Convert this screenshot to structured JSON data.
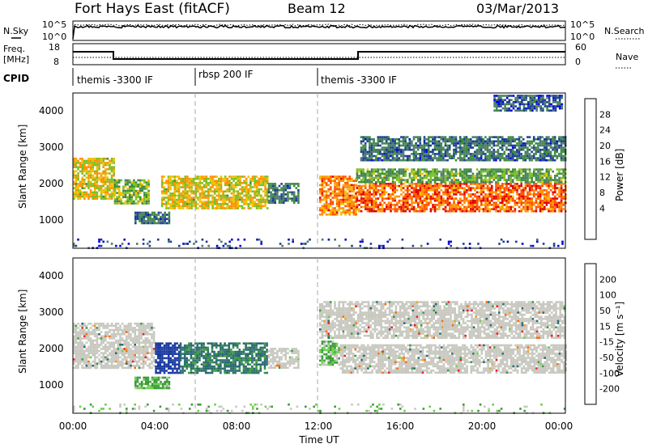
{
  "header": {
    "station": "Fort Hays East (fitACF)",
    "beam": "Beam 12",
    "date": "03/Mar/2013"
  },
  "left_labels": {
    "nsky": "N.Sky",
    "freq1": "Freq.",
    "freq2": "[MHz]",
    "cpid": "CPID"
  },
  "right_labels": {
    "nsearch": "N.Search",
    "nave": "Nave"
  },
  "noise_panel": {
    "ticks_left": [
      "10^5",
      "10^0"
    ],
    "ticks_right": [
      "10^5",
      "10^0"
    ]
  },
  "freq_panel": {
    "ticks_left": [
      "18",
      "8"
    ],
    "ticks_right": [
      "60",
      "0"
    ]
  },
  "cpid_segments": [
    {
      "label": "themis -3300 IF",
      "start": 0,
      "end": 6
    },
    {
      "label": "rbsp 200 IF",
      "start": 6,
      "end": 12
    },
    {
      "label": "themis -3300 IF",
      "start": 12,
      "end": 24
    }
  ],
  "power_panel": {
    "ylabel": "Slant Range [km]",
    "cbar_label": "Power [dB]",
    "cbar_ticks": [
      "28",
      "24",
      "20",
      "16",
      "12",
      "8",
      "4"
    ],
    "cbar_colors": [
      "#e00000",
      "#ff5000",
      "#ff9000",
      "#f0c000",
      "#78c020",
      "#3c8c3c",
      "#4a7a68",
      "#1c3c96",
      "#0000e0"
    ]
  },
  "velocity_panel": {
    "ylabel": "Slant Range [km]",
    "cbar_label": "Velocity [m s⁻¹]",
    "cbar_ticks": [
      "200",
      "100",
      "50",
      "15",
      "-15",
      "-50",
      "-100",
      "-200"
    ],
    "cbar_colors": [
      "#1a3aa0",
      "#2a6a70",
      "#3c9a3c",
      "#6ad04a",
      "#c8c8c0",
      "#f0a020",
      "#ff6a00",
      "#f02020",
      "#e00000"
    ],
    "ground_scatter_color": "#c8c8c0"
  },
  "y_ticks": [
    "4000",
    "3000",
    "2000",
    "1000"
  ],
  "x_ticks": [
    "00:00",
    "04:00",
    "08:00",
    "12:00",
    "16:00",
    "20:00",
    "00:00"
  ],
  "xlabel": "Time UT",
  "chart_data": {
    "type": "heatmap",
    "x_range_hours": [
      0,
      24
    ],
    "y_range_km": [
      180,
      4500
    ],
    "scatter_regions_power": [
      {
        "t0": 0.0,
        "t1": 2.0,
        "r0": 1550,
        "r1": 2700,
        "db": 20
      },
      {
        "t0": 2.0,
        "t1": 3.7,
        "r0": 1400,
        "r1": 2100,
        "db": 16
      },
      {
        "t0": 3.0,
        "t1": 4.7,
        "r0": 850,
        "r1": 1200,
        "db": 10
      },
      {
        "t0": 4.3,
        "t1": 9.5,
        "r0": 1300,
        "r1": 2200,
        "db": 20
      },
      {
        "t0": 9.5,
        "t1": 11.0,
        "r0": 1450,
        "r1": 2000,
        "db": 10
      },
      {
        "t0": 12.0,
        "t1": 13.8,
        "r0": 1100,
        "r1": 2200,
        "db": 24
      },
      {
        "t0": 13.8,
        "t1": 24.0,
        "r0": 1200,
        "r1": 2000,
        "db": 26
      },
      {
        "t0": 13.8,
        "t1": 24.0,
        "r0": 2000,
        "r1": 2400,
        "db": 14
      },
      {
        "t0": 14.0,
        "t1": 24.0,
        "r0": 2600,
        "r1": 3300,
        "db": 10
      },
      {
        "t0": 20.5,
        "t1": 23.8,
        "r0": 4000,
        "r1": 4450,
        "db": 8
      },
      {
        "t0": 0.0,
        "t1": 24.0,
        "r0": 180,
        "r1": 450,
        "db": 6
      }
    ],
    "scatter_regions_velocity": [
      {
        "t0": 0.0,
        "t1": 4.0,
        "r0": 1450,
        "r1": 2700,
        "v": 0,
        "ground": true
      },
      {
        "t0": 4.0,
        "t1": 5.2,
        "r0": 1300,
        "r1": 2150,
        "v": 200
      },
      {
        "t0": 5.2,
        "t1": 9.5,
        "r0": 1300,
        "r1": 2150,
        "v": 90
      },
      {
        "t0": 9.5,
        "t1": 11.0,
        "r0": 1450,
        "r1": 2000,
        "v": 0,
        "ground": true
      },
      {
        "t0": 3.0,
        "t1": 4.7,
        "r0": 850,
        "r1": 1200,
        "v": 40
      },
      {
        "t0": 12.0,
        "t1": 13.0,
        "r0": 1500,
        "r1": 2200,
        "v": 30
      },
      {
        "t0": 13.0,
        "t1": 24.0,
        "r0": 1300,
        "r1": 2100,
        "v": 0,
        "ground": true
      },
      {
        "t0": 12.0,
        "t1": 24.0,
        "r0": 2300,
        "r1": 3300,
        "v": 0,
        "ground": true
      },
      {
        "t0": 0.0,
        "t1": 24.0,
        "r0": 180,
        "r1": 450,
        "v": 20
      }
    ]
  }
}
